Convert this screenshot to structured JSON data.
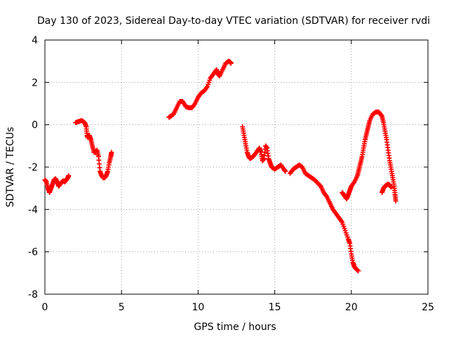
{
  "chart_data": {
    "type": "scatter",
    "title": "Day 130 of 2023, Sidereal Day-to-day VTEC variation (SDTVAR) for receiver rvdi",
    "xlabel": "GPS time / hours",
    "ylabel": "SDTVAR / TECUs",
    "xlim": [
      0,
      25
    ],
    "ylim": [
      -8,
      4
    ],
    "xticks": [
      "0",
      "5",
      "10",
      "15",
      "20",
      "25"
    ],
    "yticks": [
      "-8",
      "-6",
      "-4",
      "-2",
      "0",
      "2",
      "4"
    ],
    "grid": true,
    "marker": "+",
    "color": "#ff0000",
    "segments": [
      [
        [
          0.0,
          -2.6
        ],
        [
          0.1,
          -2.7
        ],
        [
          0.2,
          -3.0
        ],
        [
          0.3,
          -3.2
        ],
        [
          0.4,
          -3.0
        ],
        [
          0.5,
          -2.8
        ],
        [
          0.6,
          -2.6
        ],
        [
          0.7,
          -2.55
        ],
        [
          0.8,
          -2.7
        ],
        [
          0.9,
          -2.9
        ],
        [
          1.0,
          -2.8
        ],
        [
          1.1,
          -2.7
        ],
        [
          1.2,
          -2.65
        ],
        [
          1.3,
          -2.7
        ],
        [
          1.4,
          -2.6
        ],
        [
          1.5,
          -2.5
        ],
        [
          1.55,
          -2.4
        ]
      ],
      [
        [
          2.0,
          0.1
        ],
        [
          2.2,
          0.15
        ],
        [
          2.4,
          0.2
        ],
        [
          2.6,
          0.1
        ],
        [
          2.7,
          -0.1
        ],
        [
          2.75,
          -0.5
        ],
        [
          2.8,
          -0.6
        ],
        [
          2.9,
          -0.5
        ],
        [
          3.0,
          -0.7
        ],
        [
          3.1,
          -1.0
        ],
        [
          3.2,
          -1.3
        ],
        [
          3.3,
          -1.3
        ],
        [
          3.4,
          -1.2
        ],
        [
          3.5,
          -1.5
        ],
        [
          3.6,
          -2.2
        ],
        [
          3.7,
          -2.4
        ],
        [
          3.8,
          -2.5
        ],
        [
          3.9,
          -2.5
        ],
        [
          4.0,
          -2.4
        ],
        [
          4.1,
          -2.2
        ],
        [
          4.2,
          -1.8
        ],
        [
          4.3,
          -1.5
        ],
        [
          4.35,
          -1.3
        ]
      ],
      [
        [
          8.1,
          0.35
        ],
        [
          8.2,
          0.4
        ],
        [
          8.4,
          0.5
        ],
        [
          8.6,
          0.8
        ],
        [
          8.8,
          1.1
        ],
        [
          9.0,
          1.1
        ],
        [
          9.2,
          0.85
        ],
        [
          9.4,
          0.8
        ],
        [
          9.6,
          0.8
        ],
        [
          9.8,
          1.0
        ],
        [
          10.0,
          1.3
        ],
        [
          10.2,
          1.5
        ],
        [
          10.4,
          1.6
        ],
        [
          10.6,
          1.8
        ],
        [
          10.8,
          2.2
        ],
        [
          11.0,
          2.4
        ],
        [
          11.2,
          2.6
        ],
        [
          11.3,
          2.4
        ],
        [
          11.4,
          2.3
        ],
        [
          11.6,
          2.6
        ],
        [
          11.8,
          2.9
        ],
        [
          12.0,
          3.0
        ],
        [
          12.1,
          2.95
        ],
        [
          12.15,
          2.9
        ]
      ],
      [
        [
          12.9,
          -0.1
        ],
        [
          13.0,
          -0.5
        ],
        [
          13.1,
          -0.9
        ],
        [
          13.2,
          -1.3
        ],
        [
          13.3,
          -1.5
        ],
        [
          13.4,
          -1.6
        ],
        [
          13.6,
          -1.5
        ],
        [
          13.8,
          -1.3
        ],
        [
          14.0,
          -1.1
        ],
        [
          14.1,
          -1.3
        ],
        [
          14.2,
          -1.7
        ],
        [
          14.3,
          -1.6
        ],
        [
          14.4,
          -1.0
        ],
        [
          14.5,
          -1.1
        ],
        [
          14.6,
          -1.6
        ],
        [
          14.7,
          -1.8
        ],
        [
          14.8,
          -2.0
        ],
        [
          15.0,
          -2.1
        ],
        [
          15.2,
          -2.0
        ],
        [
          15.4,
          -1.9
        ],
        [
          15.6,
          -2.1
        ],
        [
          15.7,
          -2.2
        ]
      ],
      [
        [
          16.0,
          -2.3
        ],
        [
          16.2,
          -2.1
        ],
        [
          16.4,
          -2.0
        ],
        [
          16.6,
          -1.9
        ],
        [
          16.8,
          -2.0
        ],
        [
          17.0,
          -2.3
        ],
        [
          17.2,
          -2.4
        ],
        [
          17.4,
          -2.5
        ],
        [
          17.6,
          -2.6
        ],
        [
          17.8,
          -2.75
        ],
        [
          18.0,
          -2.9
        ],
        [
          18.2,
          -3.2
        ],
        [
          18.4,
          -3.4
        ],
        [
          18.6,
          -3.7
        ],
        [
          18.8,
          -4.0
        ],
        [
          19.0,
          -4.2
        ],
        [
          19.2,
          -4.4
        ],
        [
          19.4,
          -4.6
        ],
        [
          19.6,
          -5.0
        ],
        [
          19.8,
          -5.4
        ],
        [
          19.9,
          -5.6
        ],
        [
          20.0,
          -6.1
        ],
        [
          20.1,
          -6.5
        ],
        [
          20.2,
          -6.7
        ],
        [
          20.3,
          -6.8
        ],
        [
          20.45,
          -6.9
        ]
      ],
      [
        [
          19.4,
          -3.2
        ],
        [
          19.5,
          -3.3
        ],
        [
          19.6,
          -3.4
        ],
        [
          19.7,
          -3.5
        ],
        [
          19.8,
          -3.3
        ],
        [
          19.9,
          -3.1
        ],
        [
          20.0,
          -2.9
        ],
        [
          20.2,
          -2.7
        ],
        [
          20.4,
          -2.4
        ],
        [
          20.5,
          -2.1
        ],
        [
          20.6,
          -1.8
        ],
        [
          20.7,
          -1.5
        ],
        [
          20.8,
          -1.1
        ],
        [
          20.9,
          -0.7
        ],
        [
          21.0,
          -0.4
        ],
        [
          21.1,
          -0.1
        ],
        [
          21.2,
          0.2
        ],
        [
          21.4,
          0.5
        ],
        [
          21.6,
          0.6
        ],
        [
          21.8,
          0.6
        ],
        [
          22.0,
          0.4
        ],
        [
          22.1,
          0.1
        ],
        [
          22.2,
          -0.3
        ],
        [
          22.3,
          -0.7
        ],
        [
          22.4,
          -1.2
        ],
        [
          22.5,
          -1.7
        ],
        [
          22.6,
          -2.1
        ],
        [
          22.7,
          -2.5
        ],
        [
          22.8,
          -2.9
        ],
        [
          22.85,
          -3.3
        ],
        [
          22.9,
          -3.6
        ]
      ],
      [
        [
          22.0,
          -3.2
        ],
        [
          22.1,
          -3.0
        ],
        [
          22.2,
          -2.9
        ],
        [
          22.3,
          -2.85
        ],
        [
          22.4,
          -2.8
        ],
        [
          22.5,
          -2.85
        ],
        [
          22.6,
          -2.95
        ]
      ]
    ]
  }
}
